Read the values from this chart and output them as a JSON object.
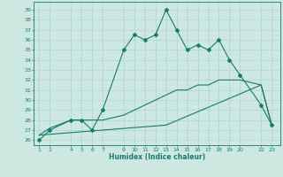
{
  "xlabel": "Humidex (Indice chaleur)",
  "bg_color": "#cce8e0",
  "line_color": "#1a7a6e",
  "grid_color": "#aacfc8",
  "xticks": [
    1,
    2,
    4,
    5,
    6,
    7,
    9,
    10,
    11,
    12,
    13,
    14,
    15,
    16,
    17,
    18,
    19,
    20,
    22,
    23
  ],
  "ylim": [
    25.5,
    39.8
  ],
  "xlim": [
    0.5,
    23.8
  ],
  "yticks": [
    26,
    27,
    28,
    29,
    30,
    31,
    32,
    33,
    34,
    35,
    36,
    37,
    38,
    39
  ],
  "series1_x": [
    1,
    2,
    4,
    5,
    6,
    7,
    9,
    10,
    11,
    12,
    13,
    14,
    15,
    16,
    17,
    18,
    19,
    20,
    22,
    23
  ],
  "series1_y": [
    26.0,
    27.0,
    28.0,
    28.0,
    27.0,
    29.0,
    35.0,
    36.5,
    36.0,
    36.5,
    39.0,
    37.0,
    35.0,
    35.5,
    35.0,
    36.0,
    34.0,
    32.5,
    29.5,
    27.5
  ],
  "series2_x": [
    1,
    2,
    4,
    5,
    6,
    7,
    9,
    10,
    11,
    12,
    13,
    14,
    15,
    16,
    17,
    18,
    19,
    20,
    22,
    23
  ],
  "series2_y": [
    26.5,
    27.2,
    28.0,
    28.0,
    28.0,
    28.0,
    28.5,
    29.0,
    29.5,
    30.0,
    30.5,
    31.0,
    31.0,
    31.5,
    31.5,
    32.0,
    32.0,
    32.0,
    31.5,
    27.5
  ],
  "series3_x": [
    1,
    13,
    22,
    23
  ],
  "series3_y": [
    26.5,
    27.5,
    31.5,
    27.5
  ]
}
